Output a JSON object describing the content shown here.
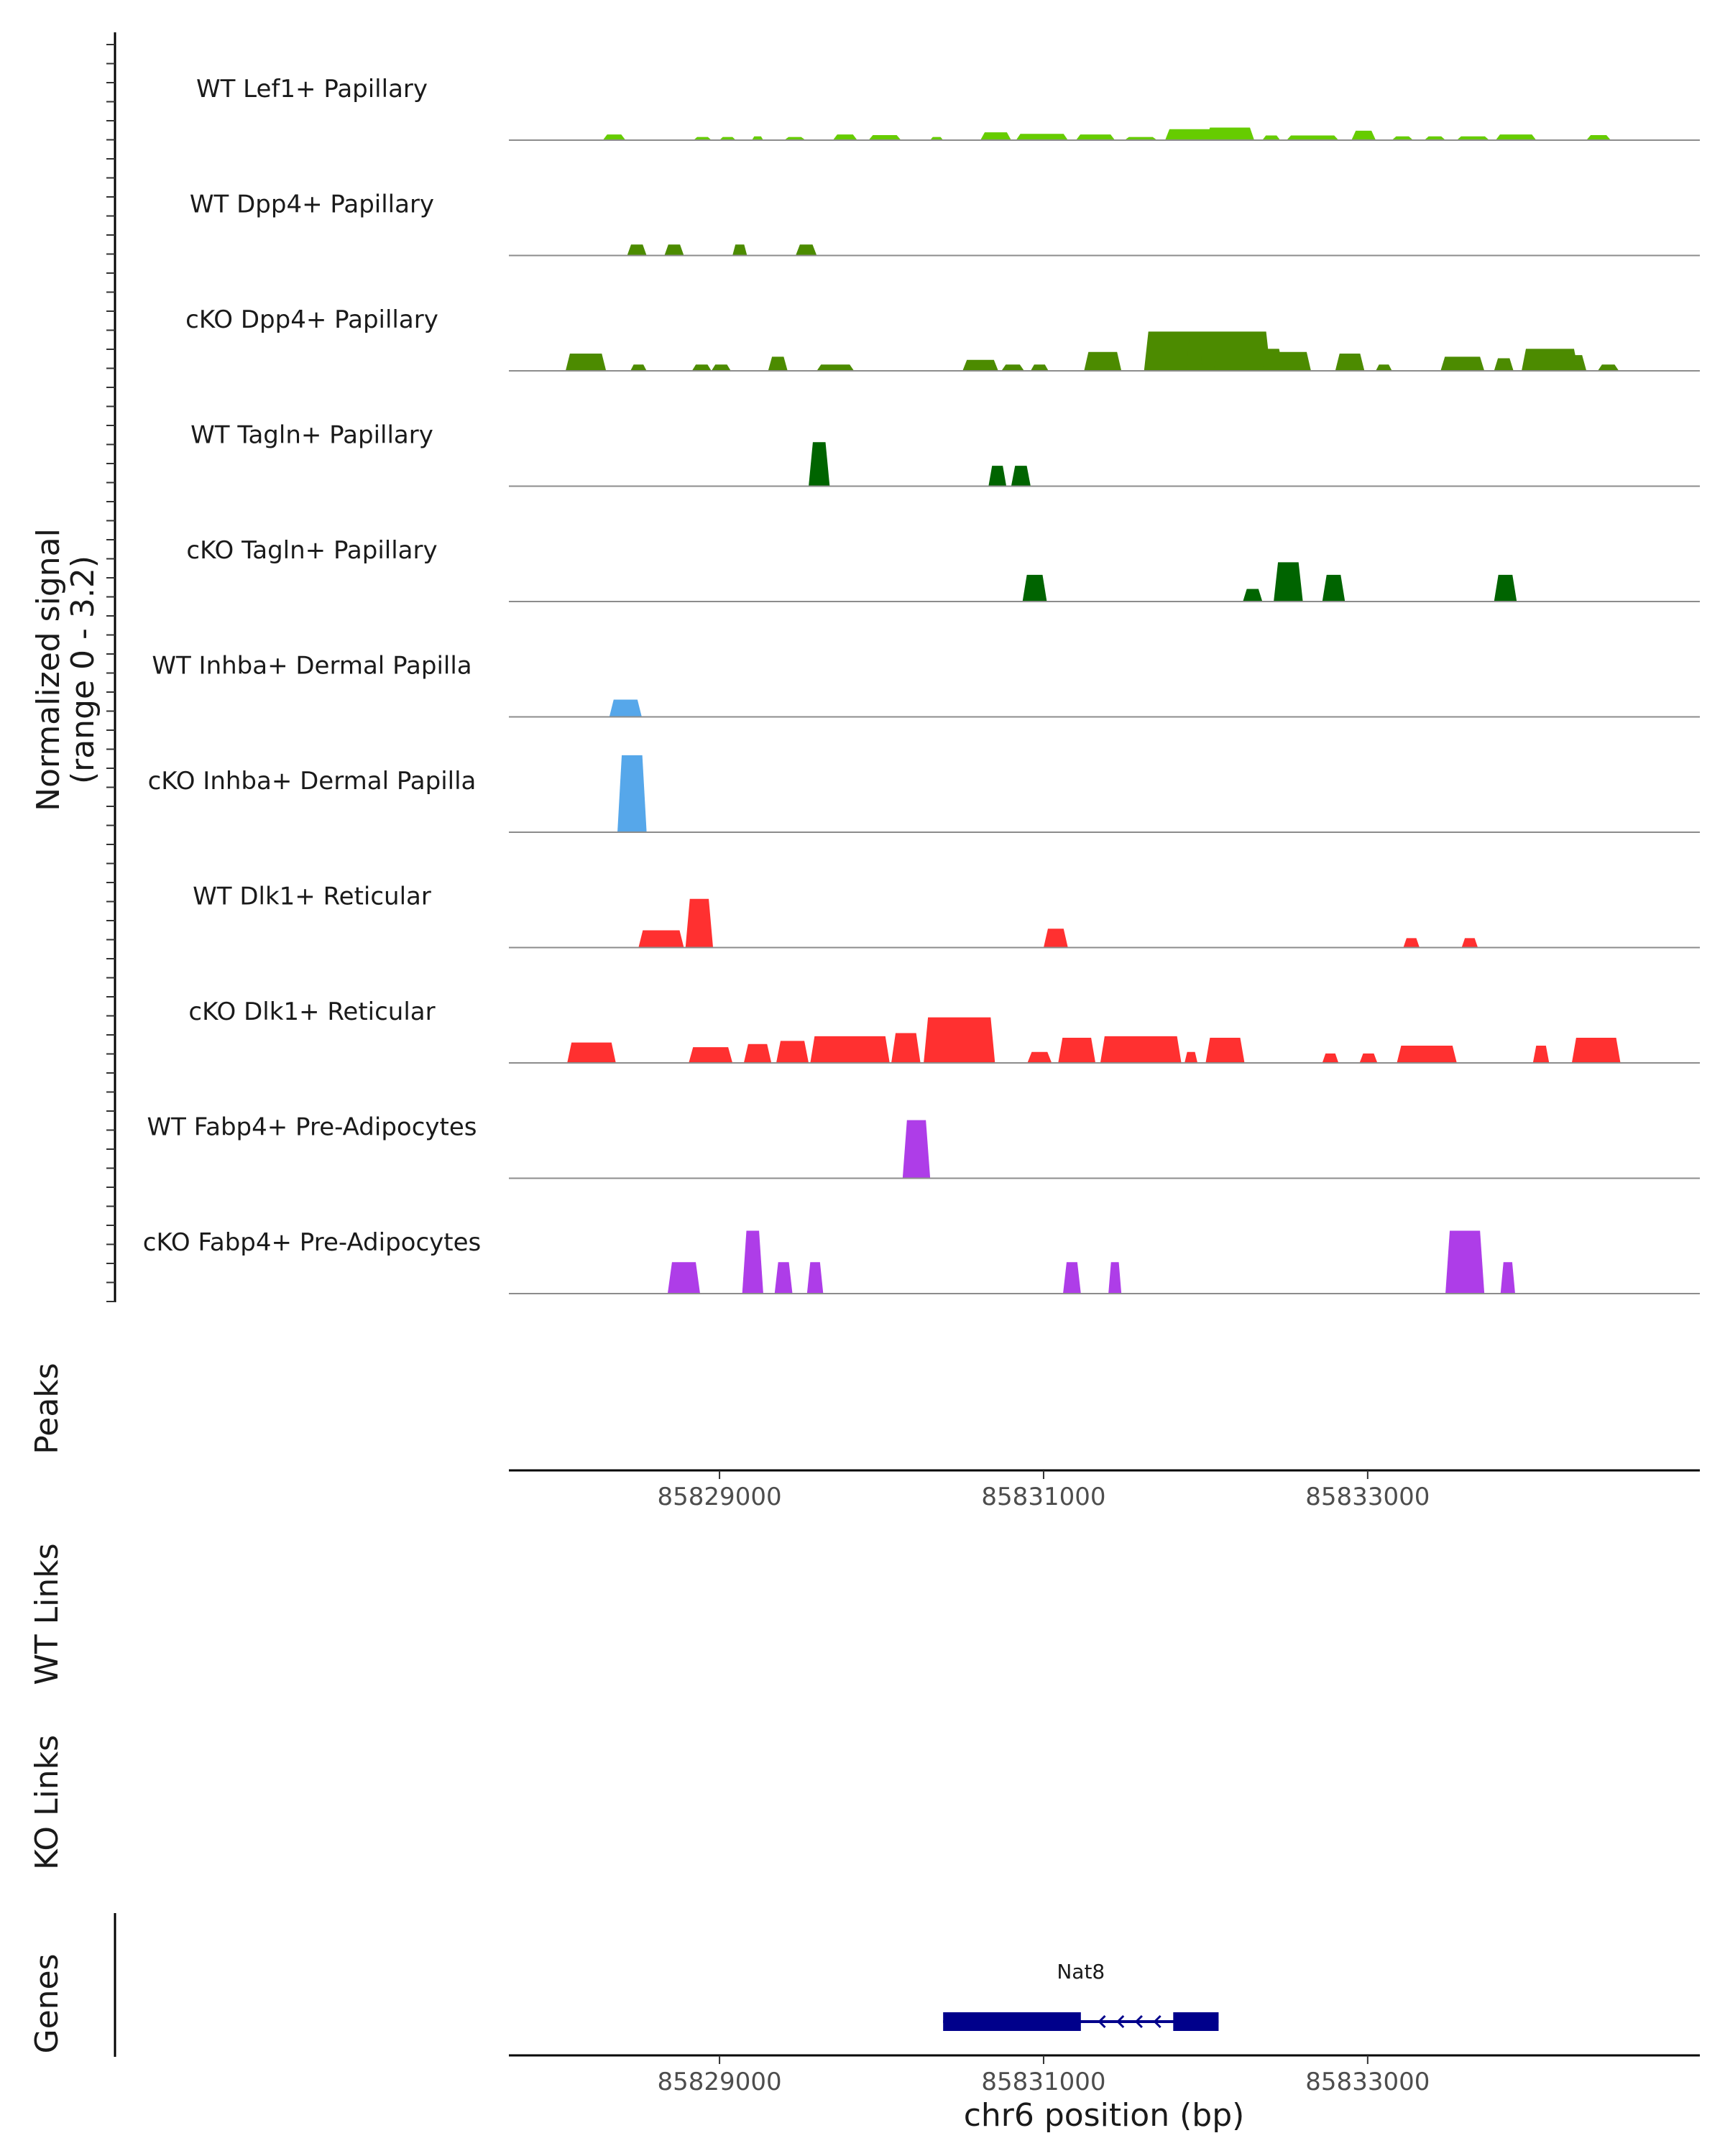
{
  "chart_data": {
    "type": "area",
    "title": "",
    "xlabel": "chr6 position (bp)",
    "ylabel": "Normalized signal",
    "ylabel_range": "(range 0 - 3.2)",
    "y_range": [
      0,
      3.2
    ],
    "xlim": [
      85827700,
      85835050
    ],
    "x_ticks": [
      85829000,
      85831000,
      85833000
    ],
    "x_tick_labels": [
      "85829000",
      "85831000",
      "85833000"
    ],
    "tracks": [
      {
        "name": "WT Lef1+ Papillary",
        "color": "#66CC00",
        "peaks": [
          [
            85828280,
            85828420,
            0.18
          ],
          [
            85828840,
            85828950,
            0.1
          ],
          [
            85829000,
            85829100,
            0.1
          ],
          [
            85829200,
            85829270,
            0.12
          ],
          [
            85829400,
            85829530,
            0.1
          ],
          [
            85829700,
            85829850,
            0.18
          ],
          [
            85829920,
            85830120,
            0.16
          ],
          [
            85830300,
            85830380,
            0.1
          ],
          [
            85830610,
            85830800,
            0.25
          ],
          [
            85830830,
            85831150,
            0.2
          ],
          [
            85831200,
            85831440,
            0.18
          ],
          [
            85831500,
            85831700,
            0.1
          ],
          [
            85831750,
            85832050,
            0.35
          ],
          [
            85832000,
            85832300,
            0.4
          ],
          [
            85832350,
            85832460,
            0.15
          ],
          [
            85832500,
            85832820,
            0.15
          ],
          [
            85832900,
            85833050,
            0.3
          ],
          [
            85833150,
            85833280,
            0.12
          ],
          [
            85833350,
            85833480,
            0.12
          ],
          [
            85833550,
            85833750,
            0.12
          ],
          [
            85833790,
            85834040,
            0.18
          ],
          [
            85834350,
            85834500,
            0.16
          ]
        ]
      },
      {
        "name": "WT Dpp4+ Papillary",
        "color": "#4C8B00",
        "peaks": [
          [
            85828430,
            85828550,
            0.35
          ],
          [
            85828660,
            85828780,
            0.35
          ],
          [
            85829080,
            85829170,
            0.35
          ],
          [
            85829470,
            85829600,
            0.35
          ]
        ]
      },
      {
        "name": "cKO Dpp4+ Papillary",
        "color": "#4C8B00",
        "peaks": [
          [
            85828050,
            85828300,
            0.55
          ],
          [
            85828450,
            85828550,
            0.2
          ],
          [
            85828830,
            85828950,
            0.2
          ],
          [
            85828950,
            85829070,
            0.2
          ],
          [
            85829300,
            85829420,
            0.45
          ],
          [
            85829600,
            85829830,
            0.2
          ],
          [
            85830500,
            85830720,
            0.35
          ],
          [
            85830740,
            85830880,
            0.2
          ],
          [
            85830920,
            85831030,
            0.2
          ],
          [
            85831250,
            85831480,
            0.6
          ],
          [
            85831620,
            85832400,
            1.25
          ],
          [
            85831880,
            85831980,
            1.1
          ],
          [
            85832050,
            85832480,
            0.7
          ],
          [
            85832350,
            85832650,
            0.6
          ],
          [
            85832800,
            85832980,
            0.55
          ],
          [
            85833050,
            85833150,
            0.2
          ],
          [
            85833450,
            85833720,
            0.45
          ],
          [
            85833780,
            85833900,
            0.4
          ],
          [
            85833950,
            85834300,
            0.7
          ],
          [
            85834050,
            85834350,
            0.5
          ],
          [
            85834420,
            85834550,
            0.2
          ]
        ]
      },
      {
        "name": "WT Tagln+ Papillary",
        "color": "#006400",
        "peaks": [
          [
            85829550,
            85829680,
            1.4
          ],
          [
            85830660,
            85830770,
            0.65
          ],
          [
            85830800,
            85830920,
            0.65
          ]
        ]
      },
      {
        "name": "cKO Tagln+ Papillary",
        "color": "#006400",
        "peaks": [
          [
            85830870,
            85831020,
            0.85
          ],
          [
            85832230,
            85832350,
            0.4
          ],
          [
            85832420,
            85832600,
            1.25
          ],
          [
            85832720,
            85832860,
            0.85
          ],
          [
            85833780,
            85833920,
            0.85
          ]
        ]
      },
      {
        "name": "WT Inhba+ Dermal Papilla",
        "color": "#56A7EA",
        "peaks": [
          [
            85828320,
            85828520,
            0.55
          ]
        ]
      },
      {
        "name": "cKO Inhba+ Dermal Papilla",
        "color": "#56A7EA",
        "peaks": [
          [
            85828370,
            85828550,
            2.45
          ]
        ]
      },
      {
        "name": "WT Dlk1+ Reticular",
        "color": "#FF3030",
        "peaks": [
          [
            85828500,
            85828780,
            0.55
          ],
          [
            85828790,
            85828960,
            1.55
          ],
          [
            85831000,
            85831150,
            0.6
          ],
          [
            85833220,
            85833320,
            0.3
          ],
          [
            85833580,
            85833680,
            0.3
          ]
        ]
      },
      {
        "name": "cKO Dlk1+ Reticular",
        "color": "#FF3030",
        "peaks": [
          [
            85828060,
            85828360,
            0.65
          ],
          [
            85828810,
            85829080,
            0.5
          ],
          [
            85829150,
            85829320,
            0.6
          ],
          [
            85829350,
            85829550,
            0.7
          ],
          [
            85829560,
            85830050,
            0.85
          ],
          [
            85830060,
            85830240,
            0.95
          ],
          [
            85830260,
            85830700,
            1.45
          ],
          [
            85830900,
            85831050,
            0.35
          ],
          [
            85831090,
            85831320,
            0.8
          ],
          [
            85831350,
            85831850,
            0.85
          ],
          [
            85831870,
            85831950,
            0.35
          ],
          [
            85832000,
            85832240,
            0.8
          ],
          [
            85832720,
            85832820,
            0.3
          ],
          [
            85832950,
            85833060,
            0.3
          ],
          [
            85833180,
            85833550,
            0.55
          ],
          [
            85834020,
            85834120,
            0.55
          ],
          [
            85834260,
            85834560,
            0.8
          ]
        ]
      },
      {
        "name": "WT Fabp4+ Pre-Adipocytes",
        "color": "#AE3DE8",
        "peaks": [
          [
            85830130,
            85830300,
            1.85
          ]
        ]
      },
      {
        "name": "cKO Fabp4+ Pre-Adipocytes",
        "color": "#AE3DE8",
        "peaks": [
          [
            85828680,
            85828880,
            1.0
          ],
          [
            85829140,
            85829270,
            2.0
          ],
          [
            85829340,
            85829450,
            1.0
          ],
          [
            85829540,
            85829640,
            1.0
          ],
          [
            85831120,
            85831230,
            1.0
          ],
          [
            85831400,
            85831480,
            1.0
          ],
          [
            85833480,
            85833720,
            2.0
          ],
          [
            85833820,
            85833910,
            1.0
          ]
        ]
      }
    ],
    "panels": [
      "Peaks",
      "WT Links",
      "KO Links",
      "Genes"
    ],
    "genes": [
      {
        "name": "Nat8",
        "start": 85830380,
        "end": 85832080,
        "strand": "-",
        "exons": [
          [
            85830380,
            85831230
          ],
          [
            85831800,
            85832080
          ]
        ]
      }
    ]
  }
}
